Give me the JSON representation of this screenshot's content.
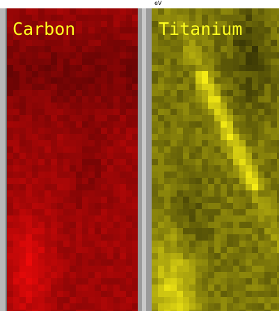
{
  "top_label": "eV",
  "panels": [
    {
      "label": "Carbon"
    },
    {
      "label": "Titanium"
    }
  ]
}
